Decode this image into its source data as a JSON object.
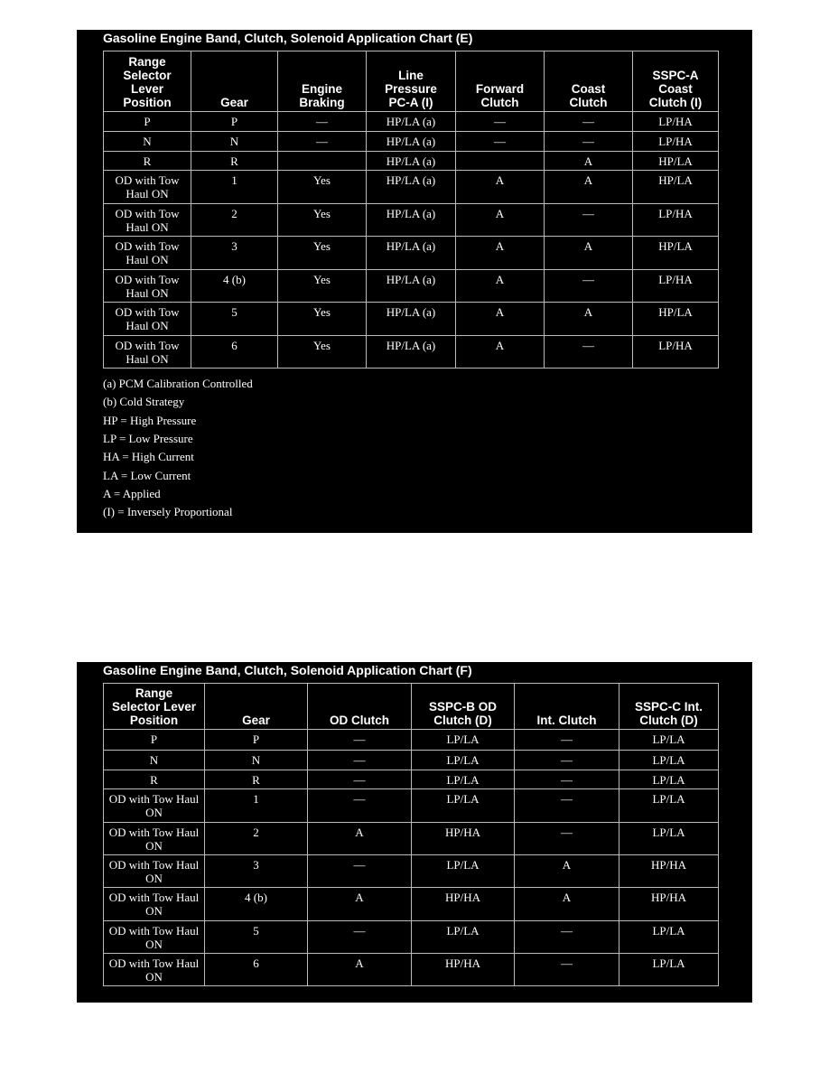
{
  "charts": [
    {
      "title": "Gasoline Engine Band, Clutch, Solenoid Application Chart (E)",
      "headers": [
        [
          "Range",
          "Selector",
          "Lever",
          "Position"
        ],
        [
          "Gear"
        ],
        [
          "Engine",
          "Braking"
        ],
        [
          "Line",
          "Pressure",
          "PC-A (I)"
        ],
        [
          "Forward",
          "Clutch"
        ],
        [
          "Coast",
          "Clutch"
        ],
        [
          "SSPC-A",
          "Coast",
          "Clutch (I)"
        ]
      ],
      "rows": [
        [
          "P",
          "P",
          "—",
          "HP/LA (a)",
          "—",
          "—",
          "LP/HA"
        ],
        [
          "N",
          "N",
          "—",
          "HP/LA (a)",
          "—",
          "—",
          "LP/HA"
        ],
        [
          "R",
          "R",
          null,
          "HP/LA (a)",
          null,
          "A",
          "HP/LA"
        ],
        [
          "OD with Tow Haul ON",
          "1",
          "Yes",
          "HP/LA (a)",
          "A",
          "A",
          "HP/LA"
        ],
        [
          "OD with Tow Haul ON",
          "2",
          "Yes",
          "HP/LA (a)",
          "A",
          "—",
          "LP/HA"
        ],
        [
          "OD with Tow Haul ON",
          "3",
          "Yes",
          "HP/LA (a)",
          "A",
          "A",
          "HP/LA"
        ],
        [
          "OD with Tow Haul ON",
          "4 (b)",
          "Yes",
          "HP/LA (a)",
          "A",
          "—",
          "LP/HA"
        ],
        [
          "OD with Tow Haul ON",
          "5",
          "Yes",
          "HP/LA (a)",
          "A",
          "A",
          "HP/LA"
        ],
        [
          "OD with Tow Haul ON",
          "6",
          "Yes",
          "HP/LA (a)",
          "A",
          "—",
          "LP/HA"
        ]
      ],
      "notes": [
        "(a) PCM Calibration Controlled",
        "(b) Cold Strategy",
        "HP = High Pressure",
        "LP = Low Pressure",
        "HA = High Current",
        "LA = Low Current",
        "A = Applied",
        "(I) = Inversely Proportional"
      ]
    },
    {
      "title": "Gasoline Engine Band, Clutch, Solenoid Application Chart (F)",
      "headers": [
        [
          "Range",
          "Selector Lever",
          "Position"
        ],
        [
          "Gear"
        ],
        [
          "OD Clutch"
        ],
        [
          "SSPC-B OD",
          "Clutch (D)"
        ],
        [
          "Int. Clutch"
        ],
        [
          "SSPC-C Int.",
          "Clutch (D)"
        ]
      ],
      "rows": [
        [
          "P",
          "P",
          "—",
          "LP/LA",
          "—",
          "LP/LA"
        ],
        [
          "N",
          "N",
          "—",
          "LP/LA",
          "—",
          "LP/LA"
        ],
        [
          "R",
          "R",
          "—",
          "LP/LA",
          "—",
          "LP/LA"
        ],
        [
          "OD with Tow Haul ON",
          "1",
          "—",
          "LP/LA",
          "—",
          "LP/LA"
        ],
        [
          "OD with Tow Haul ON",
          "2",
          "A",
          "HP/HA",
          "—",
          "LP/LA"
        ],
        [
          "OD with Tow Haul ON",
          "3",
          "—",
          "LP/LA",
          "A",
          "HP/HA"
        ],
        [
          "OD with Tow Haul ON",
          "4 (b)",
          "A",
          "HP/HA",
          "A",
          "HP/HA"
        ],
        [
          "OD with Tow Haul ON",
          "5",
          "—",
          "LP/LA",
          "—",
          "LP/LA"
        ],
        [
          "OD with Tow Haul ON",
          "6",
          "A",
          "HP/HA",
          "—",
          "LP/LA"
        ]
      ]
    }
  ]
}
